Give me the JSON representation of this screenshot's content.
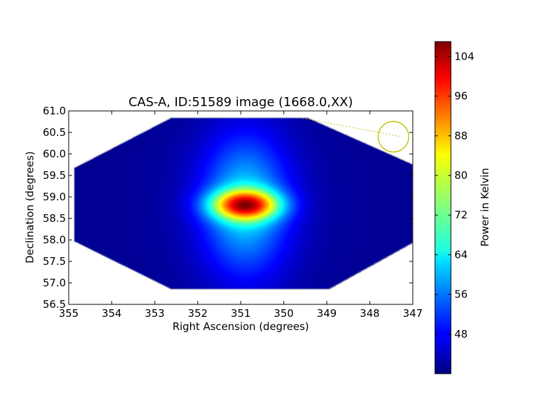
{
  "chart_data": {
    "type": "heatmap",
    "title": "CAS-A, ID:51589 image (1668.0,XX)",
    "xlabel": "Right Ascension (degrees)",
    "ylabel": "Declination (degrees)",
    "xlim": [
      355,
      347
    ],
    "ylim": [
      56.5,
      61.0
    ],
    "x_ticks": [
      "355",
      "354",
      "353",
      "352",
      "351",
      "350",
      "349",
      "348",
      "347"
    ],
    "y_ticks": [
      "56.5",
      "57.0",
      "57.5",
      "58.0",
      "58.5",
      "59.0",
      "59.5",
      "60.0",
      "60.5",
      "61.0"
    ],
    "colorbar": {
      "label": "Power in Kelvin",
      "range": [
        40,
        107
      ],
      "ticks": [
        "48",
        "56",
        "64",
        "72",
        "80",
        "88",
        "96",
        "104"
      ],
      "colormap": "jet"
    },
    "source": {
      "ra": 350.9,
      "dec": 58.82,
      "peak": 106
    },
    "background_level": 41,
    "beam": {
      "ra": 347.45,
      "dec": 60.4,
      "color": "#bfbf00"
    },
    "grid": false
  }
}
